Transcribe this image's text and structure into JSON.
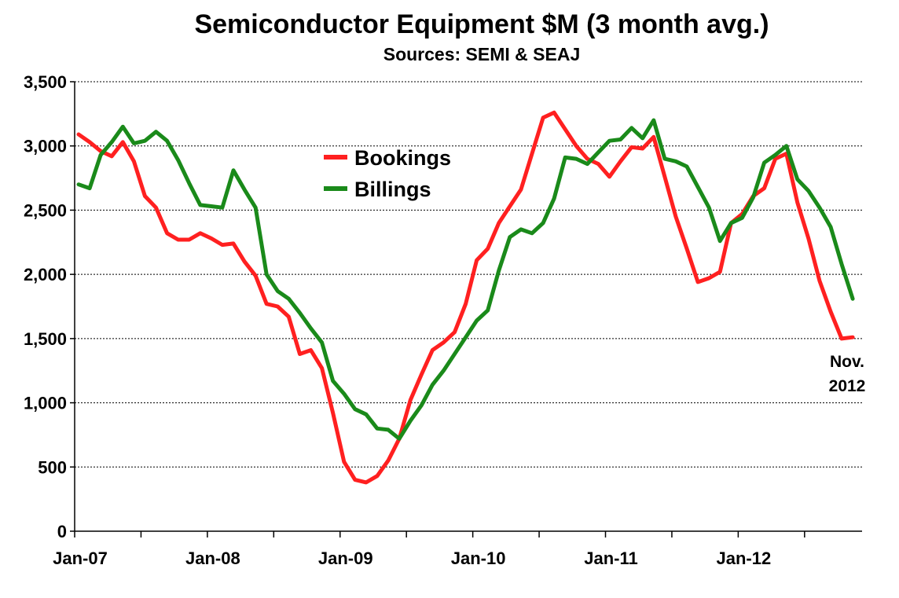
{
  "chart_data": {
    "type": "line",
    "title": "Semiconductor Equipment $M (3 month avg.)",
    "subtitle": "Sources: SEMI & SEAJ",
    "xlabel": "",
    "ylabel": "",
    "ylim": [
      0,
      3500
    ],
    "yticks": [
      0,
      500,
      1000,
      1500,
      2000,
      2500,
      3000,
      3500
    ],
    "ytick_labels": [
      "0",
      "500",
      "1,000",
      "1,500",
      "2,000",
      "2,500",
      "3,000",
      "3,500"
    ],
    "xlim": [
      "2007-01",
      "2012-11"
    ],
    "xtick_labels": [
      "Jan-07",
      "Jan-08",
      "Jan-09",
      "Jan-10",
      "Jan-11",
      "Jan-12"
    ],
    "grid": true,
    "legend_position": "upper-center",
    "annotation": [
      "Nov.",
      "2012"
    ],
    "x": [
      "2007-01",
      "2007-02",
      "2007-03",
      "2007-04",
      "2007-05",
      "2007-06",
      "2007-07",
      "2007-08",
      "2007-09",
      "2007-10",
      "2007-11",
      "2007-12",
      "2008-01",
      "2008-02",
      "2008-03",
      "2008-04",
      "2008-05",
      "2008-06",
      "2008-07",
      "2008-08",
      "2008-09",
      "2008-10",
      "2008-11",
      "2008-12",
      "2009-01",
      "2009-02",
      "2009-03",
      "2009-04",
      "2009-05",
      "2009-06",
      "2009-07",
      "2009-08",
      "2009-09",
      "2009-10",
      "2009-11",
      "2009-12",
      "2010-01",
      "2010-02",
      "2010-03",
      "2010-04",
      "2010-05",
      "2010-06",
      "2010-07",
      "2010-08",
      "2010-09",
      "2010-10",
      "2010-11",
      "2010-12",
      "2011-01",
      "2011-02",
      "2011-03",
      "2011-04",
      "2011-05",
      "2011-06",
      "2011-07",
      "2011-08",
      "2011-09",
      "2011-10",
      "2011-11",
      "2011-12",
      "2012-01",
      "2012-02",
      "2012-03",
      "2012-04",
      "2012-05",
      "2012-06",
      "2012-07",
      "2012-08",
      "2012-09",
      "2012-10",
      "2012-11"
    ],
    "series": [
      {
        "name": "Bookings",
        "color": "#ff2020",
        "values": [
          3090,
          3030,
          2960,
          2920,
          3030,
          2880,
          2610,
          2520,
          2320,
          2270,
          2270,
          2320,
          2280,
          2230,
          2240,
          2100,
          1990,
          1770,
          1750,
          1670,
          1380,
          1410,
          1270,
          920,
          540,
          400,
          380,
          430,
          550,
          720,
          1020,
          1220,
          1410,
          1470,
          1550,
          1770,
          2110,
          2200,
          2400,
          2530,
          2660,
          2940,
          3220,
          3260,
          3130,
          3000,
          2900,
          2860,
          2760,
          2880,
          2990,
          2980,
          3070,
          2760,
          2450,
          2200,
          1940,
          1970,
          2020,
          2400,
          2470,
          2610,
          2670,
          2900,
          2940,
          2560,
          2280,
          1950,
          1710,
          1500,
          1510
        ]
      },
      {
        "name": "Billings",
        "color": "#1a8a1a",
        "values": [
          2700,
          2670,
          2930,
          3030,
          3150,
          3020,
          3040,
          3110,
          3040,
          2890,
          2710,
          2540,
          2530,
          2520,
          2810,
          2660,
          2520,
          2000,
          1870,
          1810,
          1700,
          1580,
          1470,
          1170,
          1070,
          950,
          910,
          800,
          790,
          720,
          860,
          980,
          1140,
          1250,
          1380,
          1510,
          1640,
          1720,
          2030,
          2290,
          2350,
          2320,
          2400,
          2590,
          2910,
          2900,
          2860,
          2950,
          3040,
          3050,
          3140,
          3060,
          3200,
          2900,
          2880,
          2840,
          2680,
          2520,
          2260,
          2400,
          2440,
          2600,
          2870,
          2930,
          3000,
          2740,
          2650,
          2520,
          2370,
          2080,
          1810
        ]
      }
    ]
  }
}
